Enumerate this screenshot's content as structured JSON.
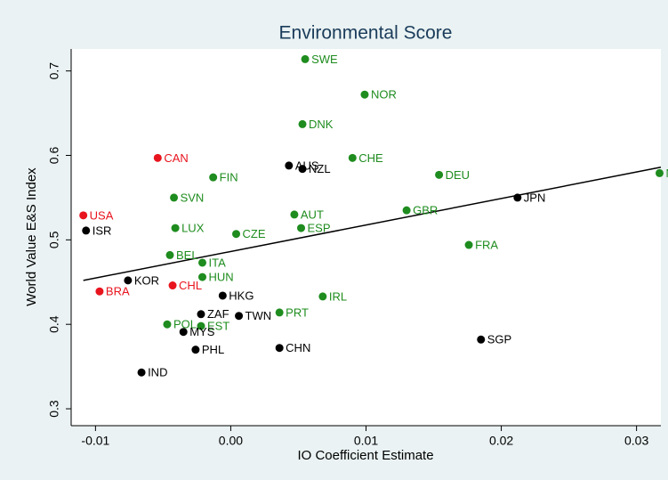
{
  "chart_data": {
    "type": "scatter",
    "title": "Environmental Score",
    "x_label": "IO Coefficient Estimate",
    "y_label": "World Value E&S Index",
    "xlim": [
      -0.0118,
      0.0318
    ],
    "ylim": [
      0.28,
      0.726
    ],
    "xticks": [
      -0.01,
      {
        "value": 0,
        "label": "0.00"
      },
      0.01,
      0.02,
      0.03
    ],
    "yticks": [
      0.3,
      0.4,
      0.5,
      0.6,
      0.7
    ],
    "series": [
      {
        "color": "#1e8c1e",
        "labels": [
          "SWE",
          "NOR",
          "DNK",
          "CHE",
          "FIN",
          "DEU",
          "NLD",
          "SVN",
          "LUX",
          "CZE",
          "AUT",
          "ESP",
          "GBR",
          "FRA",
          "BEL",
          "ITA",
          "HUN",
          "IRL",
          "PRT",
          "POL",
          "EST"
        ],
        "x": [
          0.0055,
          0.0099,
          0.0053,
          0.009,
          -0.0013,
          0.0154,
          0.0317,
          -0.0042,
          -0.0041,
          0.0004,
          0.0047,
          0.0052,
          0.013,
          0.0176,
          -0.0045,
          -0.0021,
          -0.0021,
          0.0068,
          0.0036,
          -0.0047,
          -0.0022
        ],
        "y": [
          0.714,
          0.672,
          0.637,
          0.597,
          0.574,
          0.577,
          0.579,
          0.55,
          0.514,
          0.507,
          0.53,
          0.514,
          0.535,
          0.494,
          0.482,
          0.473,
          0.456,
          0.433,
          0.414,
          0.4,
          0.398
        ]
      },
      {
        "color": "#e8141e",
        "labels": [
          "CAN",
          "USA",
          "CHL",
          "BRA"
        ],
        "x": [
          -0.0054,
          -0.0109,
          -0.0043,
          -0.0097
        ],
        "y": [
          0.597,
          0.529,
          0.446,
          0.439
        ]
      },
      {
        "color": "#000000",
        "labels": [
          "AUS",
          "NZL",
          "JPN",
          "ISR",
          "KOR",
          "HKG",
          "ZAF",
          "TWN",
          "MYS",
          "SGP",
          "CHN",
          "PHL",
          "IND"
        ],
        "x": [
          0.0043,
          0.0053,
          0.0212,
          -0.0107,
          -0.0076,
          -0.0006,
          -0.0022,
          0.0006,
          -0.0035,
          0.0185,
          0.0036,
          -0.0026,
          -0.0066
        ],
        "y": [
          0.588,
          0.584,
          0.55,
          0.511,
          0.452,
          0.434,
          0.412,
          0.41,
          0.391,
          0.382,
          0.372,
          0.37,
          0.343
        ]
      }
    ],
    "fit_line": {
      "color": "#000000",
      "x": [
        -0.0109,
        0.0318
      ],
      "y": [
        0.452,
        0.586
      ]
    }
  }
}
